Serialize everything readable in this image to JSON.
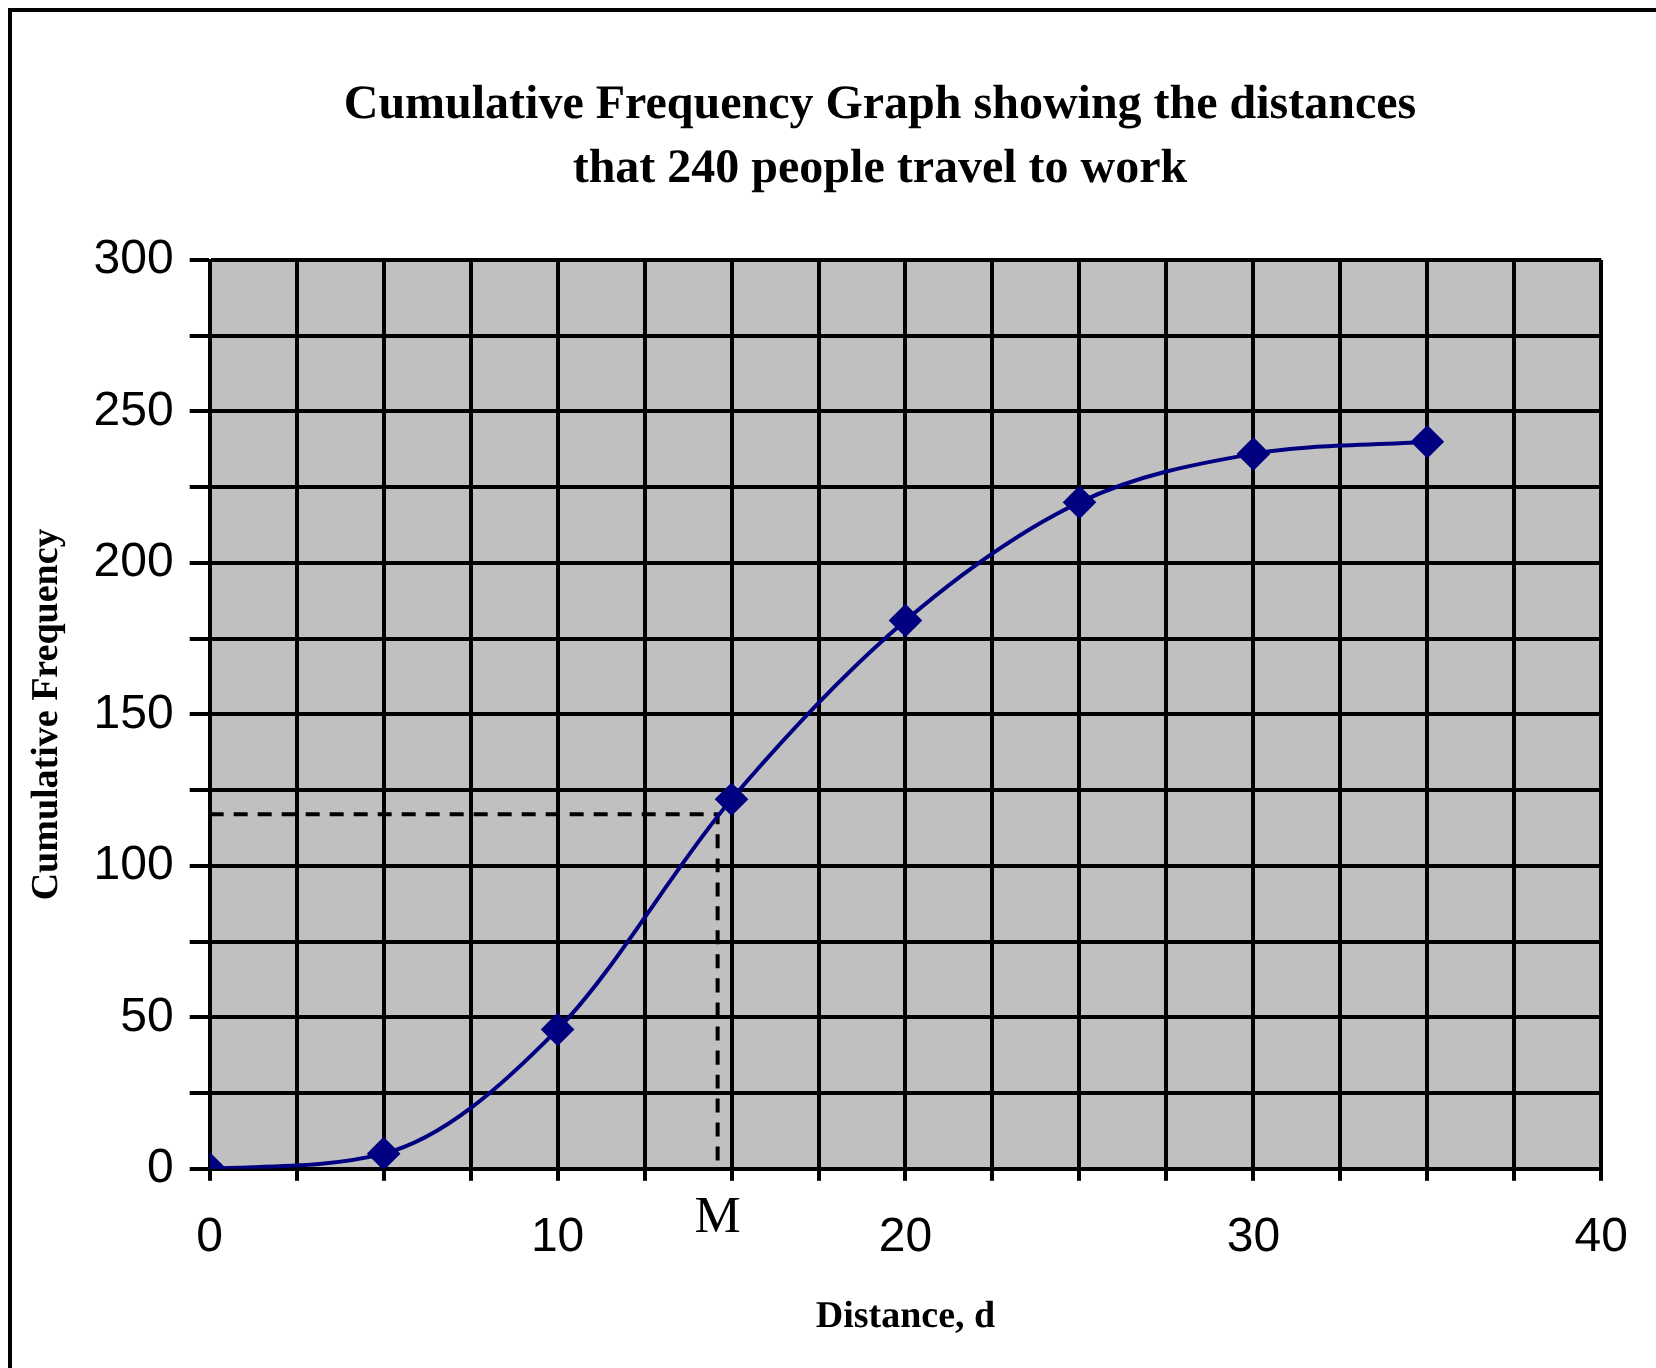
{
  "chart_data": {
    "type": "line",
    "title": "Cumulative Frequency Graph showing the distances that 240 people travel to work",
    "xlabel": "Distance, d",
    "ylabel": "Cumulative Frequency",
    "xlim": [
      0,
      40
    ],
    "xticks": [
      0,
      {
        "value": 2.5,
        "label": null
      },
      {
        "value": 5,
        "label": null
      },
      {
        "value": 7.5,
        "label": null
      },
      10,
      {
        "value": 12.5,
        "label": null
      },
      {
        "value": 15,
        "label": null
      },
      {
        "value": 17.5,
        "label": null
      },
      20,
      {
        "value": 22.5,
        "label": null
      },
      {
        "value": 25,
        "label": null
      },
      {
        "value": 27.5,
        "label": null
      },
      30,
      {
        "value": 32.5,
        "label": null
      },
      {
        "value": 35,
        "label": null
      },
      {
        "value": 37.5,
        "label": null
      },
      40
    ],
    "ylim": [
      0,
      300
    ],
    "yticks": [
      0,
      {
        "value": 25,
        "label": null
      },
      50,
      {
        "value": 75,
        "label": null
      },
      100,
      {
        "value": 125,
        "label": null
      },
      150,
      {
        "value": 175,
        "label": null
      },
      200,
      {
        "value": 225,
        "label": null
      },
      250,
      {
        "value": 275,
        "label": null
      },
      300
    ],
    "grid": true,
    "legend": false,
    "series": [
      {
        "color": "#000080",
        "marker": "diamond",
        "line_style": "solid",
        "x": [
          0,
          5,
          10,
          15,
          20,
          25,
          30,
          35
        ],
        "values": [
          0,
          5,
          46,
          122,
          181,
          220,
          236,
          240
        ]
      },
      {
        "color": "#000000",
        "marker": "none",
        "line_style": "dashed",
        "x": [
          0,
          14.6,
          14.6
        ],
        "values": [
          117,
          117,
          0
        ]
      }
    ],
    "annotations": [
      {
        "text": "M",
        "x": 14.6,
        "y": 0
      }
    ]
  }
}
